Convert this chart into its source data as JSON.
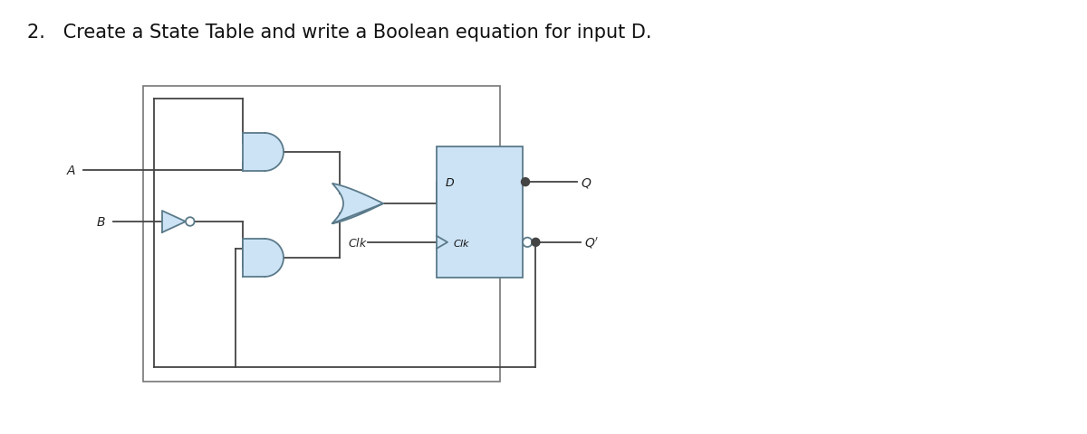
{
  "title": "2.   Create a State Table and write a Boolean equation for input D.",
  "title_fontsize": 15,
  "bg_color": "#ffffff",
  "gate_fill": "#cce3f5",
  "gate_edge": "#5a7a8a",
  "line_color": "#444444",
  "line_width": 1.3
}
